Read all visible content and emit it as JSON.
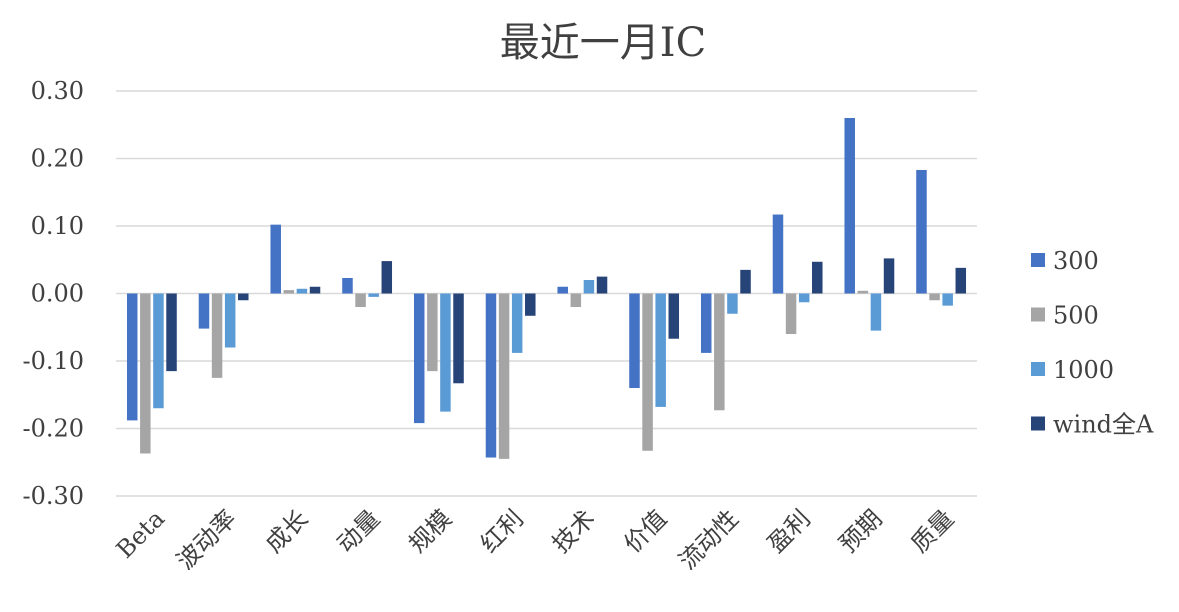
{
  "chart_data": {
    "type": "bar",
    "title": "最近一月IC",
    "xlabel": "",
    "ylabel": "",
    "ylim": [
      -0.3,
      0.3
    ],
    "yticks": [
      0.3,
      0.2,
      0.1,
      0.0,
      -0.1,
      -0.2,
      -0.3
    ],
    "ytick_labels": [
      "0.30",
      "0.20",
      "0.10",
      "0.00",
      "-0.10",
      "-0.20",
      "-0.30"
    ],
    "grid": true,
    "legend_position": "right",
    "categories": [
      "Beta",
      "波动率",
      "成长",
      "动量",
      "规模",
      "红利",
      "技术",
      "价值",
      "流动性",
      "盈利",
      "预期",
      "质量"
    ],
    "series": [
      {
        "name": "300",
        "color": "#4472C4",
        "values": [
          -0.188,
          -0.052,
          0.102,
          0.023,
          -0.192,
          -0.243,
          0.01,
          -0.14,
          -0.088,
          0.117,
          0.26,
          0.183
        ]
      },
      {
        "name": "500",
        "color": "#A5A5A5",
        "values": [
          -0.237,
          -0.125,
          0.005,
          -0.02,
          -0.115,
          -0.245,
          -0.02,
          -0.233,
          -0.173,
          -0.06,
          0.004,
          -0.01
        ]
      },
      {
        "name": "1000",
        "color": "#5B9BD5",
        "values": [
          -0.17,
          -0.08,
          0.007,
          -0.005,
          -0.175,
          -0.088,
          0.02,
          -0.168,
          -0.03,
          -0.013,
          -0.055,
          -0.018
        ]
      },
      {
        "name": "wind全A",
        "color": "#264478",
        "values": [
          -0.115,
          -0.01,
          0.01,
          0.048,
          -0.133,
          -0.033,
          0.025,
          -0.067,
          0.035,
          0.047,
          0.052,
          0.038
        ]
      }
    ]
  }
}
